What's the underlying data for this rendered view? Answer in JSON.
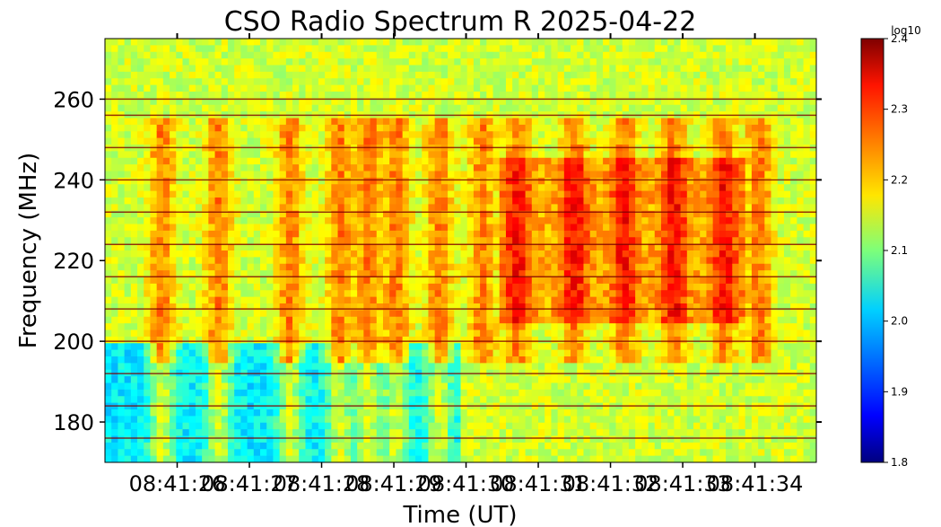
{
  "chart_data": {
    "type": "heatmap",
    "title": "CSO Radio Spectrum R 2025-04-22",
    "xlabel": "Time (UT)",
    "ylabel": "Frequency (MHz)",
    "ylim": [
      170,
      275
    ],
    "y_ticks": [
      180,
      200,
      220,
      240,
      260
    ],
    "x_tick_labels": [
      "08:41:26",
      "08:41:27",
      "08:41:28",
      "08:41:29",
      "08:41:30",
      "08:41:31",
      "08:41:32",
      "08:41:33",
      "08:41:34"
    ],
    "x_tick_labels_note": "overlapping as printed",
    "colorbar": {
      "label": "log10",
      "range": [
        1.8,
        2.4
      ],
      "ticks": [
        "1.8",
        "1.9",
        "2.0",
        "2.1",
        "2.2",
        "2.3",
        "2.4"
      ],
      "colormap": "jet"
    },
    "features": {
      "rfi_lines_mhz": [
        176,
        184,
        192,
        200,
        208,
        216,
        224,
        232,
        240,
        248,
        256,
        260
      ],
      "burst_columns_time_fraction": [
        0.08,
        0.16,
        0.26,
        0.33,
        0.37,
        0.41,
        0.47,
        0.53,
        0.58,
        0.66,
        0.73,
        0.8,
        0.87,
        0.92
      ],
      "intense_region_mhz": [
        195,
        255
      ]
    }
  }
}
